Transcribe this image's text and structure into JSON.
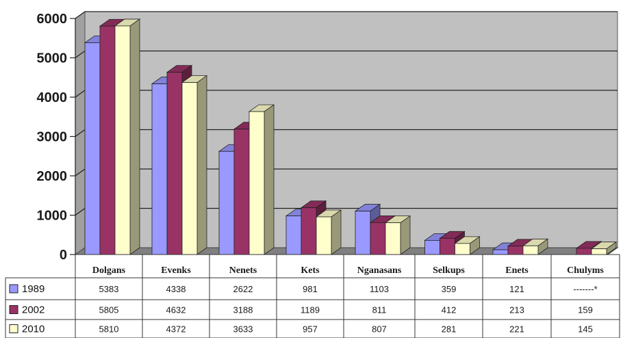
{
  "chart_data": {
    "type": "bar",
    "categories": [
      "Dolgans",
      "Evenks",
      "Nenets",
      "Kets",
      "Nganasans",
      "Selkups",
      "Enets",
      "Chulyms"
    ],
    "series": [
      {
        "name": "1989",
        "values": [
          5383,
          4338,
          2622,
          981,
          1103,
          359,
          121,
          null
        ],
        "labels": [
          "5383",
          "4338",
          "2622",
          "981",
          "1103",
          "359",
          "121",
          "-------*"
        ],
        "color": "#9999ff"
      },
      {
        "name": "2002",
        "values": [
          5805,
          4632,
          3188,
          1189,
          811,
          412,
          213,
          159
        ],
        "labels": [
          "5805",
          "4632",
          "3188",
          "1189",
          "811",
          "412",
          "213",
          "159"
        ],
        "color": "#993366"
      },
      {
        "name": "2010",
        "values": [
          5810,
          4372,
          3633,
          957,
          807,
          281,
          221,
          145
        ],
        "labels": [
          "5810",
          "4372",
          "3633",
          "957",
          "807",
          "281",
          "221",
          "145"
        ],
        "color": "#ffffcc"
      }
    ],
    "yticks": [
      "0",
      "1000",
      "2000",
      "3000",
      "4000",
      "5000",
      "6000"
    ],
    "ylim": [
      0,
      6000
    ],
    "grid": true,
    "legend": "table-left",
    "wall_color": "#c0c0c0",
    "floor_color": "#808080"
  }
}
